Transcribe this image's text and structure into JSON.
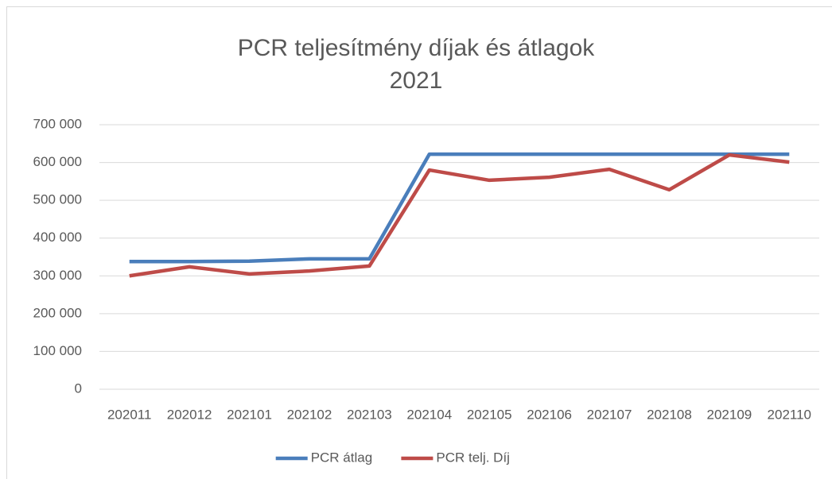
{
  "chart_data": {
    "type": "line",
    "title": "PCR teljesítmény díjak és átlagok",
    "subtitle": "2021",
    "categories": [
      "202011",
      "202012",
      "202101",
      "202102",
      "202103",
      "202104",
      "202105",
      "202106",
      "202107",
      "202108",
      "202109",
      "202110"
    ],
    "series": [
      {
        "name": "PCR átlag",
        "color": "#4a7ebb",
        "values": [
          338000,
          338000,
          339000,
          345000,
          345000,
          622000,
          622000,
          622000,
          622000,
          622000,
          622000,
          622000
        ]
      },
      {
        "name": "PCR telj. Díj",
        "color": "#be4b48",
        "values": [
          300000,
          324000,
          305000,
          313000,
          326000,
          580000,
          553000,
          561000,
          582000,
          528000,
          620000,
          601000
        ]
      }
    ],
    "ylim": [
      0,
      700000
    ],
    "yticks": [
      0,
      {
        "value": 100000,
        "label": "100 000"
      },
      {
        "value": 200000,
        "label": "200 000"
      },
      {
        "value": 300000,
        "label": "300 000"
      },
      {
        "value": 400000,
        "label": "400 000"
      },
      {
        "value": 500000,
        "label": "500 000"
      },
      {
        "value": 600000,
        "label": "600 000"
      },
      {
        "value": 700000,
        "label": "700 000"
      }
    ],
    "grid": true,
    "legend": "bottom"
  }
}
